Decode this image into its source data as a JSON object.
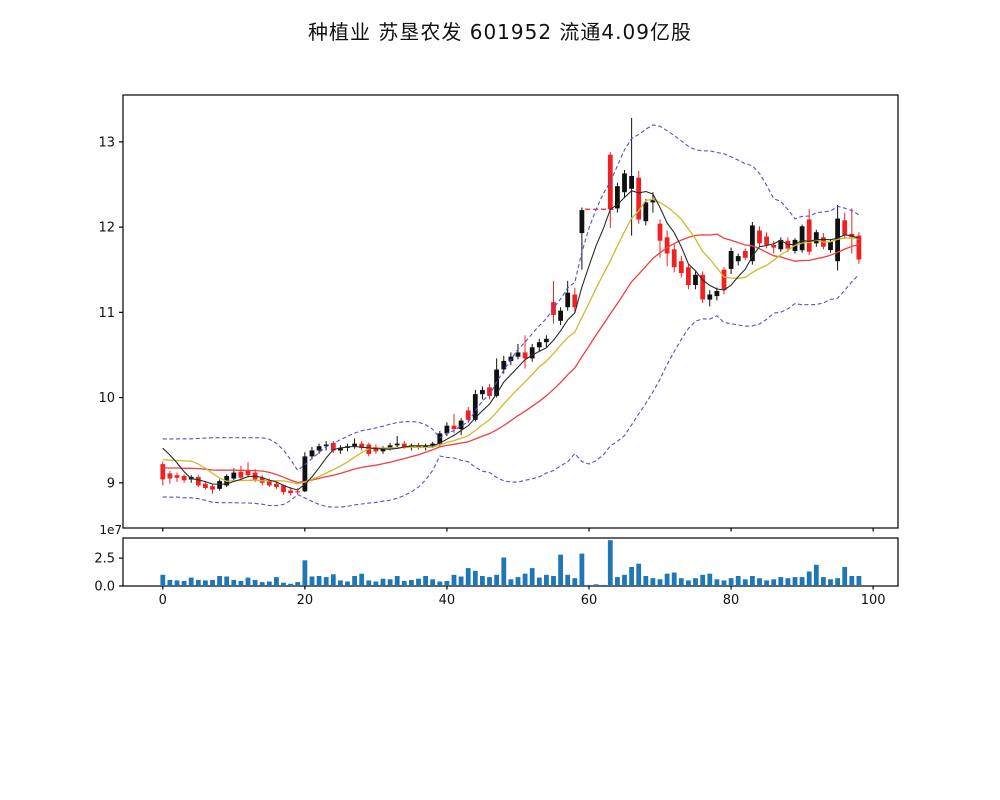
{
  "title": "种植业  苏垦农发  601952  流通4.09亿股",
  "chart_data": {
    "type": "candlestick+volume",
    "title": "种植业  苏垦农发  601952  流通4.09亿股",
    "panes": [
      "price-candlesticks-with-ma-and-bollinger",
      "volume-bars"
    ],
    "x_axis": {
      "ticks": [
        0,
        20,
        40,
        60,
        80,
        100
      ],
      "xlim": [
        -5.6,
        103.5
      ]
    },
    "price_axis": {
      "ticks": [
        9,
        10,
        11,
        12,
        13
      ],
      "ylim": [
        8.47,
        13.55
      ]
    },
    "volume_axis": {
      "tick_labels": [
        "0.0",
        "2.5"
      ],
      "tick_values_1e7": [
        0,
        2.5
      ],
      "offset_label": "1e7",
      "ylim_1e7": [
        0,
        4.3
      ]
    },
    "overlays": {
      "ma_windows": [
        5,
        10,
        20
      ],
      "bollinger": {
        "window": 20,
        "mult": 2
      }
    },
    "colors": {
      "candle_up": "#111111",
      "candle_down": "#ee2222",
      "ma5": "#2b2b2b",
      "ma10": "#c9bd2f",
      "ma20": "#ef4040",
      "bollinger": "#5050dd",
      "volume_bar": "#1f77b4",
      "suspension_dash": "#ee2222",
      "axis": "#000000"
    },
    "ohlc": [
      [
        9.22,
        9.25,
        8.97,
        9.04
      ],
      [
        9.11,
        9.14,
        8.99,
        9.05
      ],
      [
        9.09,
        9.12,
        9.01,
        9.06
      ],
      [
        9.08,
        9.1,
        9.0,
        9.03
      ],
      [
        9.04,
        9.09,
        9.0,
        9.07
      ],
      [
        9.07,
        9.09,
        8.95,
        8.97
      ],
      [
        8.99,
        9.02,
        8.92,
        8.94
      ],
      [
        8.96,
        8.98,
        8.87,
        8.92
      ],
      [
        8.93,
        9.04,
        8.91,
        9.02
      ],
      [
        8.97,
        9.1,
        8.95,
        9.08
      ],
      [
        9.05,
        9.17,
        9.02,
        9.12
      ],
      [
        9.13,
        9.2,
        9.04,
        9.06
      ],
      [
        9.14,
        9.24,
        9.06,
        9.09
      ],
      [
        9.12,
        9.16,
        9.01,
        9.04
      ],
      [
        9.06,
        9.09,
        8.97,
        9.0
      ],
      [
        9.02,
        9.05,
        8.95,
        8.97
      ],
      [
        8.99,
        9.03,
        8.93,
        8.95
      ],
      [
        8.97,
        8.98,
        8.86,
        8.89
      ],
      [
        8.91,
        8.95,
        8.85,
        8.88
      ],
      [
        8.9,
        8.94,
        8.86,
        8.89
      ],
      [
        8.9,
        9.36,
        8.89,
        9.31
      ],
      [
        9.31,
        9.42,
        9.28,
        9.38
      ],
      [
        9.38,
        9.46,
        9.34,
        9.43
      ],
      [
        9.43,
        9.49,
        9.38,
        9.45
      ],
      [
        9.47,
        9.49,
        9.35,
        9.38
      ],
      [
        9.38,
        9.44,
        9.34,
        9.41
      ],
      [
        9.41,
        9.46,
        9.37,
        9.43
      ],
      [
        9.43,
        9.52,
        9.4,
        9.46
      ],
      [
        9.46,
        9.49,
        9.38,
        9.41
      ],
      [
        9.45,
        9.47,
        9.31,
        9.34
      ],
      [
        9.42,
        9.45,
        9.34,
        9.37
      ],
      [
        9.37,
        9.43,
        9.34,
        9.41
      ],
      [
        9.41,
        9.47,
        9.38,
        9.44
      ],
      [
        9.44,
        9.55,
        9.4,
        9.46
      ],
      [
        9.46,
        9.49,
        9.4,
        9.42
      ],
      [
        9.42,
        9.46,
        9.38,
        9.44
      ],
      [
        9.44,
        9.47,
        9.39,
        9.41
      ],
      [
        9.41,
        9.46,
        9.38,
        9.44
      ],
      [
        9.44,
        9.48,
        9.41,
        9.46
      ],
      [
        9.46,
        9.61,
        9.43,
        9.58
      ],
      [
        9.58,
        9.71,
        9.55,
        9.67
      ],
      [
        9.67,
        9.81,
        9.58,
        9.63
      ],
      [
        9.63,
        9.76,
        9.56,
        9.73
      ],
      [
        9.85,
        9.89,
        9.7,
        9.74
      ],
      [
        9.74,
        10.09,
        9.72,
        10.04
      ],
      [
        10.04,
        10.13,
        9.98,
        10.09
      ],
      [
        10.12,
        10.16,
        9.98,
        10.02
      ],
      [
        10.02,
        10.46,
        10.0,
        10.33
      ],
      [
        10.33,
        10.49,
        10.28,
        10.43
      ],
      [
        10.43,
        10.53,
        10.38,
        10.48
      ],
      [
        10.48,
        10.63,
        10.45,
        10.53
      ],
      [
        10.53,
        10.73,
        10.34,
        10.46
      ],
      [
        10.46,
        10.63,
        10.42,
        10.59
      ],
      [
        10.59,
        10.69,
        10.54,
        10.65
      ],
      [
        10.65,
        10.73,
        10.59,
        10.69
      ],
      [
        11.12,
        11.37,
        10.87,
        10.97
      ],
      [
        10.9,
        11.06,
        10.85,
        11.02
      ],
      [
        11.06,
        11.37,
        11.02,
        11.23
      ],
      [
        11.21,
        11.29,
        11.0,
        11.06
      ],
      [
        11.93,
        12.23,
        11.5,
        12.2
      ],
      [
        12.21,
        12.21,
        12.21,
        12.21
      ],
      [
        12.21,
        12.21,
        12.21,
        12.21
      ],
      [
        12.21,
        12.21,
        12.21,
        12.21
      ],
      [
        12.85,
        12.88,
        11.99,
        12.21
      ],
      [
        12.22,
        12.52,
        12.17,
        12.48
      ],
      [
        12.41,
        12.67,
        12.35,
        12.63
      ],
      [
        12.45,
        13.28,
        11.9,
        12.6
      ],
      [
        12.58,
        12.66,
        12.04,
        12.09
      ],
      [
        12.07,
        12.33,
        12.02,
        12.29
      ],
      [
        12.29,
        12.41,
        12.17,
        12.33
      ],
      [
        12.04,
        12.09,
        11.64,
        11.84
      ],
      [
        11.88,
        11.96,
        11.54,
        11.69
      ],
      [
        11.74,
        11.81,
        11.47,
        11.53
      ],
      [
        11.6,
        11.66,
        11.41,
        11.46
      ],
      [
        11.53,
        11.57,
        11.27,
        11.32
      ],
      [
        11.32,
        11.48,
        11.27,
        11.44
      ],
      [
        11.44,
        11.48,
        11.11,
        11.15
      ],
      [
        11.15,
        11.26,
        11.07,
        11.21
      ],
      [
        11.19,
        11.29,
        11.14,
        11.25
      ],
      [
        11.5,
        11.53,
        11.21,
        11.26
      ],
      [
        11.51,
        11.76,
        11.45,
        11.72
      ],
      [
        11.6,
        11.69,
        11.55,
        11.66
      ],
      [
        11.72,
        11.75,
        11.61,
        11.64
      ],
      [
        11.6,
        12.06,
        11.56,
        12.02
      ],
      [
        11.96,
        12.01,
        11.77,
        11.81
      ],
      [
        11.89,
        11.94,
        11.75,
        11.79
      ],
      [
        11.79,
        11.84,
        11.69,
        11.76
      ],
      [
        11.74,
        11.88,
        11.71,
        11.85
      ],
      [
        11.84,
        11.88,
        11.71,
        11.75
      ],
      [
        11.72,
        11.87,
        11.69,
        11.85
      ],
      [
        11.73,
        12.03,
        11.7,
        12.01
      ],
      [
        12.09,
        12.21,
        11.67,
        11.71
      ],
      [
        11.81,
        11.97,
        11.77,
        11.94
      ],
      [
        11.88,
        11.93,
        11.74,
        11.77
      ],
      [
        11.73,
        11.86,
        11.7,
        11.83
      ],
      [
        11.6,
        12.26,
        11.49,
        12.1
      ],
      [
        12.08,
        12.17,
        11.86,
        11.91
      ],
      [
        11.92,
        12.22,
        11.69,
        11.88
      ],
      [
        11.9,
        11.94,
        11.57,
        11.62
      ]
    ],
    "volume_1e7": [
      1.0,
      0.55,
      0.5,
      0.45,
      0.75,
      0.55,
      0.5,
      0.55,
      0.9,
      0.85,
      0.55,
      0.45,
      0.75,
      0.55,
      0.35,
      0.4,
      0.8,
      0.3,
      0.2,
      0.35,
      2.3,
      0.85,
      0.9,
      0.8,
      1.05,
      0.5,
      0.4,
      0.9,
      1.1,
      0.5,
      0.4,
      0.65,
      0.6,
      0.9,
      0.45,
      0.55,
      0.65,
      0.9,
      0.6,
      0.4,
      0.45,
      1.0,
      0.85,
      1.6,
      1.35,
      0.9,
      0.8,
      1.0,
      2.55,
      0.6,
      0.8,
      1.1,
      1.6,
      0.75,
      1.0,
      0.9,
      2.8,
      1.0,
      0.7,
      2.9,
      0.1,
      0.15,
      0.1,
      4.1,
      0.8,
      1.0,
      1.7,
      2.0,
      0.9,
      0.7,
      0.6,
      1.1,
      1.2,
      0.7,
      0.5,
      0.7,
      1.0,
      1.1,
      0.6,
      0.5,
      0.7,
      0.9,
      0.6,
      0.9,
      0.7,
      0.5,
      0.6,
      0.8,
      0.7,
      0.8,
      0.8,
      1.3,
      1.9,
      0.8,
      0.6,
      0.7,
      1.7,
      0.9,
      0.9
    ]
  }
}
